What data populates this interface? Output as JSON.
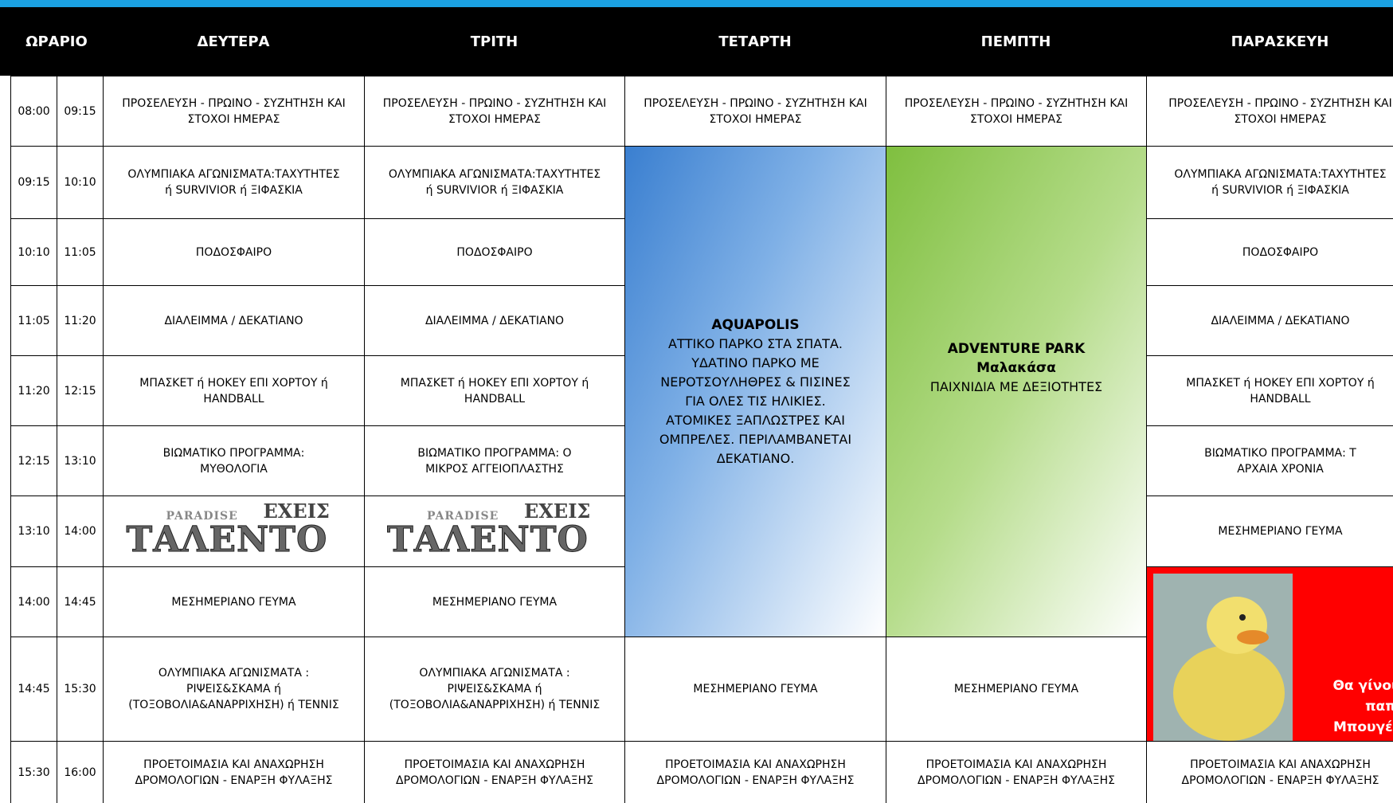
{
  "header": {
    "time": "ΩΡΑΡΙΟ"
  },
  "times": [
    [
      "08:00",
      "09:15"
    ],
    [
      "09:15",
      "10:10"
    ],
    [
      "10:10",
      "11:05"
    ],
    [
      "11:05",
      "11:20"
    ],
    [
      "11:20",
      "12:15"
    ],
    [
      "12:15",
      "13:10"
    ],
    [
      "13:10",
      "14:00"
    ],
    [
      "14:00",
      "14:45"
    ],
    [
      "14:45",
      "15:30"
    ],
    [
      "15:30",
      "16:00"
    ]
  ],
  "days": [
    {
      "name": "ΔΕΥΤΕΡΑ",
      "slots": [
        {
          "lines": [
            "ΠΡΟΣΕΛΕΥΣΗ - ΠΡΩΙΝΟ - ΣΥΖΗΤΗΣΗ ΚΑΙ",
            "ΣΤΟΧΟΙ ΗΜΕΡΑΣ"
          ]
        },
        {
          "lines": [
            "ΟΛΥΜΠΙΑΚΑ ΑΓΩΝΙΣΜΑΤΑ:ΤΑΧΥΤΗΤΕΣ",
            "ή SURVIVIOR ή ΞΙΦΑΣΚΙΑ"
          ]
        },
        {
          "lines": [
            "ΠΟΔΟΣΦΑΙΡΟ"
          ]
        },
        {
          "lines": [
            "ΔΙΑΛΕΙΜΜΑ / ΔΕΚΑΤΙΑΝΟ"
          ]
        },
        {
          "lines": [
            "ΜΠΑΣΚΕΤ ή ΗΟΚΕΥ ΕΠΙ ΧΟΡΤΟΥ ή",
            "HANDBALL"
          ]
        },
        {
          "lines": [
            "ΒΙΩΜΑΤΙΚΟ ΠΡΟΓΡΑΜΜΑ:",
            "ΜΥΘΟΛΟΓΙΑ"
          ]
        },
        {
          "logo": [
            "PARADISE",
            "ΕΧΕΙΣ",
            "ΤΑΛΕΝΤΟ"
          ]
        },
        {
          "lines": [
            "ΜΕΣΗΜΕΡΙΑΝΟ ΓΕΥΜΑ"
          ]
        },
        {
          "lines": [
            "ΟΛΥΜΠΙΑΚΑ ΑΓΩΝΙΣΜΑΤΑ :",
            "ΡΙΨΕΙΣ&ΣΚΑΜΑ ή",
            "(ΤΟΞΟΒΟΛΙΑ&ΑΝΑΡΡΙΧΗΣΗ) ή ΤΕΝΝΙΣ"
          ]
        },
        {
          "lines": [
            "ΠΡΟΕΤΟΙΜΑΣΙΑ ΚΑΙ ΑΝΑΧΩΡΗΣΗ",
            "ΔΡΟΜΟΛΟΓΙΩΝ - ΕΝΑΡΞΗ ΦΥΛΑΞΗΣ"
          ]
        }
      ]
    },
    {
      "name": "ΤΡΙΤΗ",
      "slots": [
        {
          "lines": [
            "ΠΡΟΣΕΛΕΥΣΗ - ΠΡΩΙΝΟ - ΣΥΖΗΤΗΣΗ ΚΑΙ",
            "ΣΤΟΧΟΙ ΗΜΕΡΑΣ"
          ]
        },
        {
          "lines": [
            "ΟΛΥΜΠΙΑΚΑ ΑΓΩΝΙΣΜΑΤΑ:ΤΑΧΥΤΗΤΕΣ",
            "ή SURVIVIOR ή ΞΙΦΑΣΚΙΑ"
          ]
        },
        {
          "lines": [
            "ΠΟΔΟΣΦΑΙΡΟ"
          ]
        },
        {
          "lines": [
            "ΔΙΑΛΕΙΜΜΑ / ΔΕΚΑΤΙΑΝΟ"
          ]
        },
        {
          "lines": [
            "ΜΠΑΣΚΕΤ ή ΗΟΚΕΥ ΕΠΙ ΧΟΡΤΟΥ ή",
            "HANDBALL"
          ]
        },
        {
          "lines": [
            "ΒΙΩΜΑΤΙΚΟ ΠΡΟΓΡΑΜΜΑ:            Ο",
            "ΜΙΚΡΟΣ ΑΓΓΕΙΟΠΛΑΣΤΗΣ"
          ]
        },
        {
          "logo": [
            "PARADISE",
            "ΕΧΕΙΣ",
            "ΤΑΛΕΝΤΟ"
          ]
        },
        {
          "lines": [
            "ΜΕΣΗΜΕΡΙΑΝΟ ΓΕΥΜΑ"
          ]
        },
        {
          "lines": [
            "ΟΛΥΜΠΙΑΚΑ ΑΓΩΝΙΣΜΑΤΑ :",
            "ΡΙΨΕΙΣ&ΣΚΑΜΑ ή",
            "(ΤΟΞΟΒΟΛΙΑ&ΑΝΑΡΡΙΧΗΣΗ) ή ΤΕΝΝΙΣ"
          ]
        },
        {
          "lines": [
            "ΠΡΟΕΤΟΙΜΑΣΙΑ ΚΑΙ ΑΝΑΧΩΡΗΣΗ",
            "ΔΡΟΜΟΛΟΓΙΩΝ - ΕΝΑΡΞΗ ΦΥΛΑΞΗΣ"
          ]
        }
      ]
    },
    {
      "name": "ΤΕΤΑΡΤΗ",
      "slots": [
        {
          "lines": [
            "ΠΡΟΣΕΛΕΥΣΗ - ΠΡΩΙΝΟ - ΣΥΖΗΤΗΣΗ ΚΑΙ",
            "ΣΤΟΧΟΙ ΗΜΕΡΑΣ"
          ]
        },
        {
          "title": [
            "AQUAPOLIS"
          ],
          "lines": [
            "ΑΤΤΙΚΟ ΠΑΡΚΟ ΣΤΑ ΣΠΑΤΑ.",
            "ΥΔΑΤΙΝΟ ΠΑΡΚΟ ΜΕ",
            "ΝΕΡΟΤΣΟΥΛΗΘΡΕΣ & ΠΙΣΙΝΕΣ",
            "ΓΙΑ ΟΛΕΣ ΤΙΣ ΗΛΙΚΙΕΣ.",
            "ΑΤΟΜΙΚΕΣ ΞΑΠΛΩΣΤΡΕΣ ΚΑΙ",
            "ΟΜΠΡΕΛΕΣ.  ΠΕΡΙΛΑΜΒΑΝΕΤΑΙ",
            "ΔΕΚΑΤΙΑΝΟ."
          ]
        },
        {
          "lines": [
            "ΜΕΣΗΜΕΡΙΑΝΟ ΓΕΥΜΑ"
          ]
        },
        {
          "lines": [
            "ΠΡΟΕΤΟΙΜΑΣΙΑ ΚΑΙ ΑΝΑΧΩΡΗΣΗ",
            "ΔΡΟΜΟΛΟΓΙΩΝ - ΕΝΑΡΞΗ ΦΥΛΑΞΗΣ"
          ]
        }
      ]
    },
    {
      "name": "ΠΕΜΠΤΗ",
      "slots": [
        {
          "lines": [
            "ΠΡΟΣΕΛΕΥΣΗ - ΠΡΩΙΝΟ - ΣΥΖΗΤΗΣΗ ΚΑΙ",
            "ΣΤΟΧΟΙ ΗΜΕΡΑΣ"
          ]
        },
        {
          "title": [
            "ADVENTURE PARK",
            "Μαλακάσα"
          ],
          "lines": [
            "ΠΑΙΧΝΙΔΙΑ ΜΕ ΔΕΞΙΟΤΗΤΕΣ"
          ]
        },
        {
          "lines": [
            "ΜΕΣΗΜΕΡΙΑΝΟ ΓΕΥΜΑ"
          ]
        },
        {
          "lines": [
            "ΠΡΟΕΤΟΙΜΑΣΙΑ ΚΑΙ ΑΝΑΧΩΡΗΣΗ",
            "ΔΡΟΜΟΛΟΓΙΩΝ - ΕΝΑΡΞΗ ΦΥΛΑΞΗΣ"
          ]
        }
      ]
    },
    {
      "name": "ΠΑΡΑΣΚΕΥΗ",
      "slots": [
        {
          "lines": [
            "ΠΡΟΣΕΛΕΥΣΗ - ΠΡΩΙΝΟ - ΣΥΖΗΤΗΣΗ ΚΑΙ",
            "ΣΤΟΧΟΙ ΗΜΕΡΑΣ"
          ]
        },
        {
          "lines": [
            "ΟΛΥΜΠΙΑΚΑ ΑΓΩΝΙΣΜΑΤΑ:ΤΑΧΥΤΗΤΕΣ",
            "ή SURVIVIOR ή ΞΙΦΑΣΚΙΑ"
          ]
        },
        {
          "lines": [
            "ΠΟΔΟΣΦΑΙΡΟ"
          ]
        },
        {
          "lines": [
            "ΔΙΑΛΕΙΜΜΑ / ΔΕΚΑΤΙΑΝΟ"
          ]
        },
        {
          "lines": [
            "ΜΠΑΣΚΕΤ ή ΗΟΚΕΥ ΕΠΙ ΧΟΡΤΟΥ ή",
            "HANDBALL"
          ]
        },
        {
          "lines": [
            "ΒΙΩΜΑΤΙΚΟ ΠΡΟΓΡΑΜΜΑ:                   Τ",
            "ΑΡΧΑΙΑ ΧΡΟΝΙΑ"
          ]
        },
        {
          "lines": [
            "ΜΕΣΗΜΕΡΙΑΝΟ ΓΕΥΜΑ"
          ]
        },
        {
          "caption": [
            "Θα γίνουμ",
            "παπιά",
            "Μπουγέλο"
          ]
        },
        {
          "lines": [
            "ΠΡΟΕΤΟΙΜΑΣΙΑ ΚΑΙ ΑΝΑΧΩΡΗΣΗ",
            "ΔΡΟΜΟΛΟΓΙΩΝ - ΕΝΑΡΞΗ ΦΥΛΑΞΗΣ"
          ]
        }
      ]
    }
  ]
}
